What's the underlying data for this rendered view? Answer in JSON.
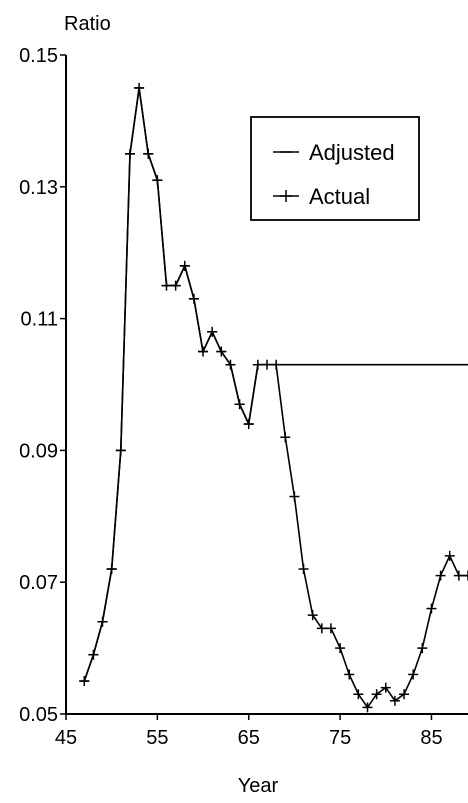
{
  "chart_data": {
    "type": "line",
    "title": "",
    "xlabel": "Year",
    "ylabel": "Ratio",
    "xlim": [
      45,
      89
    ],
    "ylim": [
      0.05,
      0.15
    ],
    "xticks": [
      {
        "value": 45,
        "label": "45"
      },
      {
        "value": 55,
        "label": "55"
      },
      {
        "value": 65,
        "label": "65"
      },
      {
        "value": 75,
        "label": "75"
      },
      {
        "value": 85,
        "label": "85"
      }
    ],
    "yticks": [
      {
        "value": 0.05,
        "label": "0.05"
      },
      {
        "value": 0.07,
        "label": "0.07"
      },
      {
        "value": 0.09,
        "label": "0.09"
      },
      {
        "value": 0.11,
        "label": "0.11"
      },
      {
        "value": 0.13,
        "label": "0.13"
      },
      {
        "value": 0.15,
        "label": "0.15"
      }
    ],
    "grid": false,
    "legend_position": "top-right",
    "series": [
      {
        "name": "Adjusted",
        "marker": "dash",
        "x": [
          47,
          48,
          49,
          50,
          51,
          52,
          53,
          54,
          55,
          56,
          57,
          58,
          59,
          60,
          61,
          62,
          63,
          64,
          65,
          66,
          67,
          68,
          69,
          70,
          71,
          72,
          73,
          74,
          75,
          76,
          77,
          78,
          79,
          80,
          81,
          82,
          83,
          84,
          85,
          86,
          87,
          88,
          89
        ],
        "y": [
          0.055,
          0.059,
          0.064,
          0.072,
          0.09,
          0.135,
          0.145,
          0.135,
          0.131,
          0.115,
          0.115,
          0.118,
          0.113,
          0.105,
          0.108,
          0.105,
          0.103,
          0.097,
          0.094,
          0.103,
          0.103,
          0.103,
          0.103,
          0.103,
          0.103,
          0.103,
          0.103,
          0.103,
          0.103,
          0.103,
          0.103,
          0.103,
          0.103,
          0.103,
          0.103,
          0.103,
          0.103,
          0.103,
          0.103,
          0.103,
          0.103,
          0.103,
          0.103
        ]
      },
      {
        "name": "Actual",
        "marker": "plus",
        "x": [
          47,
          48,
          49,
          50,
          51,
          52,
          53,
          54,
          55,
          56,
          57,
          58,
          59,
          60,
          61,
          62,
          63,
          64,
          65,
          66,
          67,
          68,
          69,
          70,
          71,
          72,
          73,
          74,
          75,
          76,
          77,
          78,
          79,
          80,
          81,
          82,
          83,
          84,
          85,
          86,
          87,
          88,
          89
        ],
        "y": [
          0.055,
          0.059,
          0.064,
          0.072,
          0.09,
          0.135,
          0.145,
          0.135,
          0.131,
          0.115,
          0.115,
          0.118,
          0.113,
          0.105,
          0.108,
          0.105,
          0.103,
          0.097,
          0.094,
          0.103,
          0.103,
          0.103,
          0.092,
          0.083,
          0.072,
          0.065,
          0.063,
          0.063,
          0.06,
          0.056,
          0.053,
          0.051,
          0.053,
          0.054,
          0.052,
          0.053,
          0.056,
          0.06,
          0.066,
          0.071,
          0.074,
          0.071,
          0.071
        ]
      }
    ]
  }
}
